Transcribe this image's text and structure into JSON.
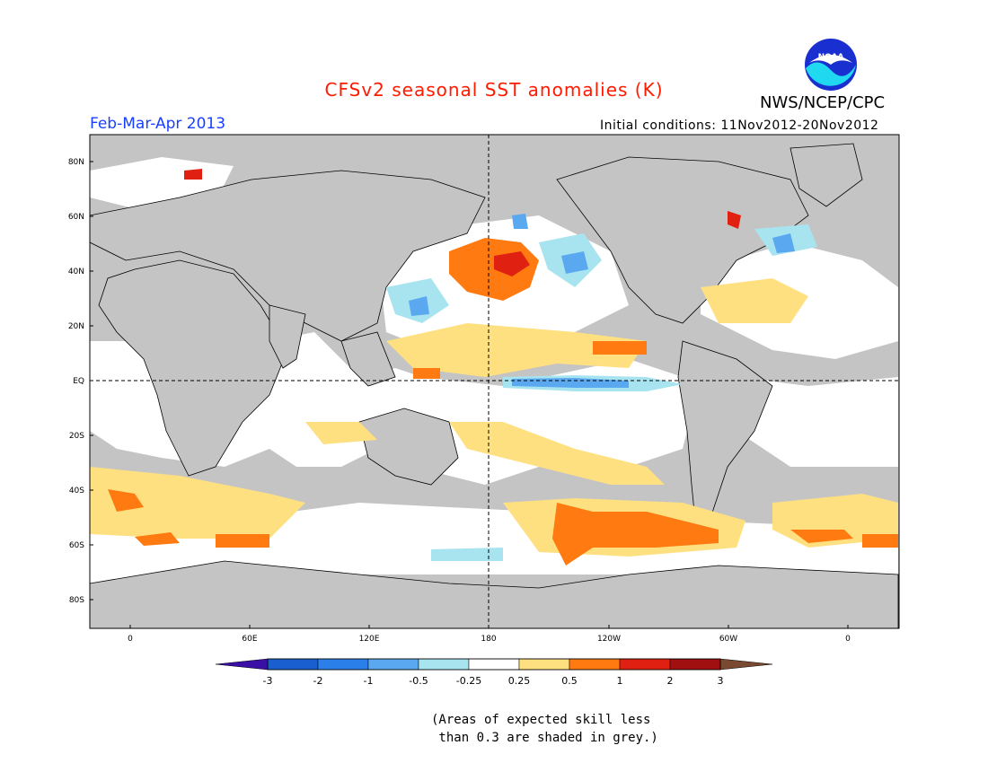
{
  "header": {
    "title": "CFSv2 seasonal SST anomalies (K)",
    "period": "Feb-Mar-Apr 2013",
    "initial_conditions": "Initial conditions: 11Nov2012-20Nov2012",
    "agency": "NWS/NCEP/CPC",
    "logo_text": "NOAA"
  },
  "colors": {
    "title": "#ff1a00",
    "period": "#1a3fff",
    "land_grey": "#c4c4c4",
    "ocean_white": "#ffffff",
    "coast": "#000000"
  },
  "map": {
    "lat_labels": [
      "80N",
      "60N",
      "40N",
      "20N",
      "EQ",
      "20S",
      "40S",
      "60S",
      "80S"
    ],
    "lon_labels": [
      "0",
      "60E",
      "120E",
      "180",
      "120W",
      "60W",
      "0"
    ]
  },
  "colorbar": {
    "tick_labels": [
      "-3",
      "-2",
      "-1",
      "-0.5",
      "-0.25",
      "0.25",
      "0.5",
      "1",
      "2",
      "3"
    ],
    "colors": [
      "#3a0fa6",
      "#1a5fd0",
      "#2a80e8",
      "#5aa8f0",
      "#a8e4f0",
      "#ffffff",
      "#ffe080",
      "#ff7a10",
      "#e02010",
      "#a01010",
      "#7a4a30"
    ]
  },
  "note": {
    "line1": "(Areas of expected skill less",
    "line2": " than 0.3 are shaded in grey.)"
  }
}
